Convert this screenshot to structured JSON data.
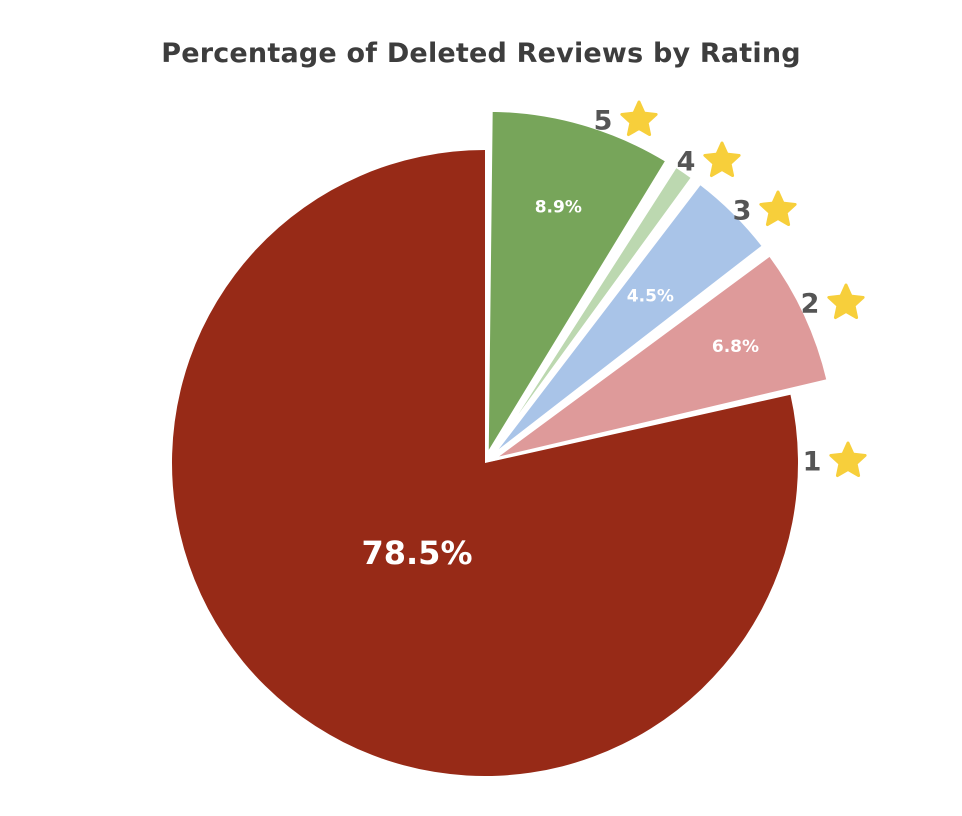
{
  "chart_data": {
    "type": "pie",
    "title": "Percentage of Deleted Reviews by Rating",
    "slices": [
      {
        "rating": "1",
        "value": 78.5,
        "label": "78.5%",
        "color": "#972a17"
      },
      {
        "rating": "2",
        "value": 6.8,
        "label": "6.8%",
        "color": "#de9a9a"
      },
      {
        "rating": "3",
        "value": 4.5,
        "label": "4.5%",
        "color": "#a9c4e8"
      },
      {
        "rating": "4",
        "value": 1.3,
        "label": "",
        "color": "#bcd8b0"
      },
      {
        "rating": "5",
        "value": 8.9,
        "label": "8.9%",
        "color": "#77a55a"
      }
    ],
    "star_color": "#f7cf3b",
    "legend": "none"
  }
}
